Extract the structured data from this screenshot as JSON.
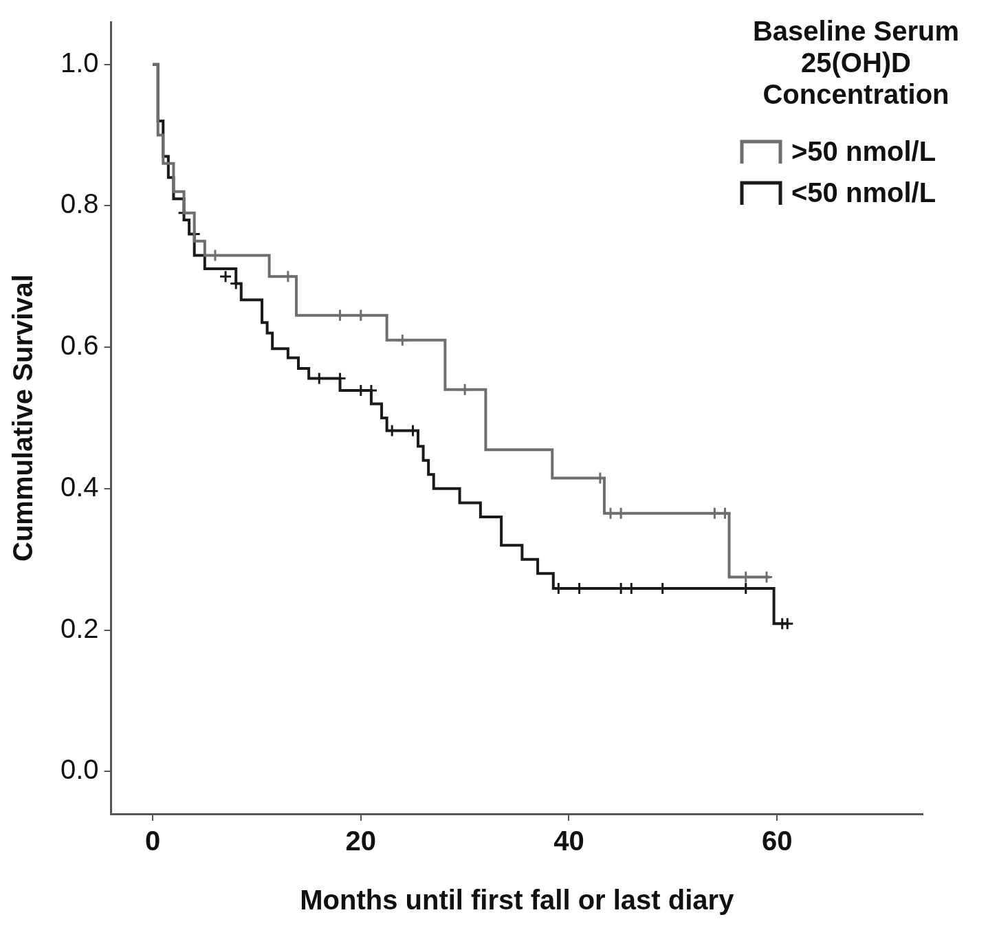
{
  "chart_data": {
    "type": "line",
    "xlabel": "Months until first fall or last diary",
    "ylabel": "Cummulative Survival",
    "legend_title": "Baseline Serum 25(OH)D Concentration",
    "legend": "upper right",
    "grid": false,
    "xlim": [
      -4,
      74
    ],
    "xticks": [
      0,
      20,
      40,
      60
    ],
    "ylim": [
      -0.06,
      1.06
    ],
    "yticks": [
      {
        "value": 0,
        "label": "0.0"
      },
      {
        "value": 0.2,
        "label": "0.2"
      },
      {
        "value": 0.4,
        "label": "0.4"
      },
      {
        "value": 0.6,
        "label": "0.6"
      },
      {
        "value": 0.8,
        "label": "0.8"
      },
      {
        "value": 1,
        "label": "1.0"
      }
    ],
    "series": [
      {
        "name": ">50 nmol/L",
        "color": "#6e6e6e",
        "line_style": "stepped",
        "marker": "plus",
        "x": [
          0,
          0.5,
          1,
          2,
          3,
          4,
          5,
          11.2,
          13.8,
          22.5,
          28.1,
          32,
          38.4,
          43.4,
          55.4,
          59.3
        ],
        "values": [
          1.0,
          0.9,
          0.86,
          0.82,
          0.79,
          0.75,
          0.73,
          0.7,
          0.645,
          0.61,
          0.54,
          0.455,
          0.415,
          0.365,
          0.275,
          0.275
        ],
        "censored_x": [
          6,
          13,
          18,
          20,
          24,
          30,
          43,
          44,
          45,
          54,
          55,
          57,
          59
        ],
        "censored_y": [
          0.73,
          0.7,
          0.645,
          0.645,
          0.61,
          0.54,
          0.415,
          0.365,
          0.365,
          0.365,
          0.365,
          0.275,
          0.275
        ]
      },
      {
        "name": "<50 nmol/L",
        "color": "#1a1a1a",
        "line_style": "stepped",
        "marker": "plus",
        "x": [
          0,
          0.5,
          1,
          1.5,
          2,
          3,
          3.5,
          4,
          5,
          8,
          8.5,
          10.5,
          11,
          11.5,
          13,
          14,
          15,
          18,
          21,
          22,
          22.5,
          25.5,
          26,
          26.5,
          27,
          29.5,
          31.5,
          33.5,
          35.5,
          37,
          38.5,
          59.7,
          61
        ],
        "values": [
          1.0,
          0.92,
          0.87,
          0.84,
          0.81,
          0.78,
          0.76,
          0.73,
          0.711,
          0.69,
          0.667,
          0.635,
          0.62,
          0.598,
          0.585,
          0.57,
          0.556,
          0.539,
          0.52,
          0.5,
          0.482,
          0.46,
          0.44,
          0.42,
          0.4,
          0.38,
          0.36,
          0.32,
          0.3,
          0.28,
          0.259,
          0.209,
          0.209
        ],
        "censored_x": [
          3,
          4,
          7,
          8,
          16,
          18,
          20,
          21,
          23,
          25,
          39,
          41,
          45,
          46,
          49,
          57,
          60.5,
          61
        ],
        "censored_y": [
          0.79,
          0.76,
          0.7,
          0.69,
          0.556,
          0.556,
          0.539,
          0.539,
          0.482,
          0.482,
          0.259,
          0.259,
          0.259,
          0.259,
          0.259,
          0.259,
          0.209,
          0.209
        ]
      }
    ]
  }
}
